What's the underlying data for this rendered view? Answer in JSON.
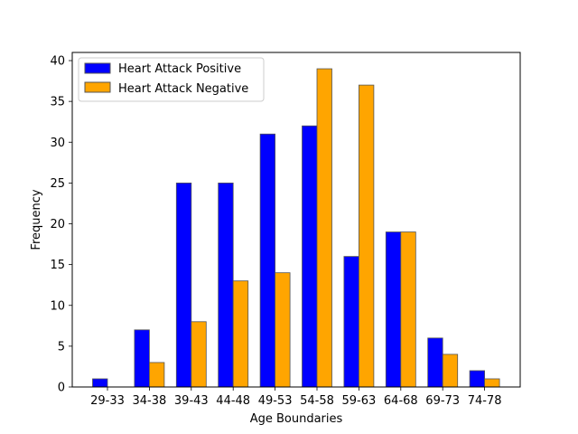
{
  "chart_data": {
    "type": "bar",
    "title": "",
    "xlabel": "Age Boundaries",
    "ylabel": "Frequency",
    "ylim": [
      0,
      41
    ],
    "yticks": [
      0,
      5,
      10,
      15,
      20,
      25,
      30,
      35,
      40
    ],
    "grid": false,
    "legend_position": "top-left",
    "categories": [
      "29-33",
      "34-38",
      "39-43",
      "44-48",
      "49-53",
      "54-58",
      "59-63",
      "64-68",
      "69-73",
      "74-78"
    ],
    "series": [
      {
        "name": "Heart Attack Positive",
        "color": "#0000ff",
        "values": [
          1,
          7,
          25,
          25,
          31,
          32,
          16,
          19,
          6,
          2
        ]
      },
      {
        "name": "Heart Attack Negative",
        "color": "#ffa500",
        "values": [
          0,
          3,
          8,
          13,
          14,
          39,
          37,
          19,
          4,
          1
        ]
      }
    ]
  }
}
